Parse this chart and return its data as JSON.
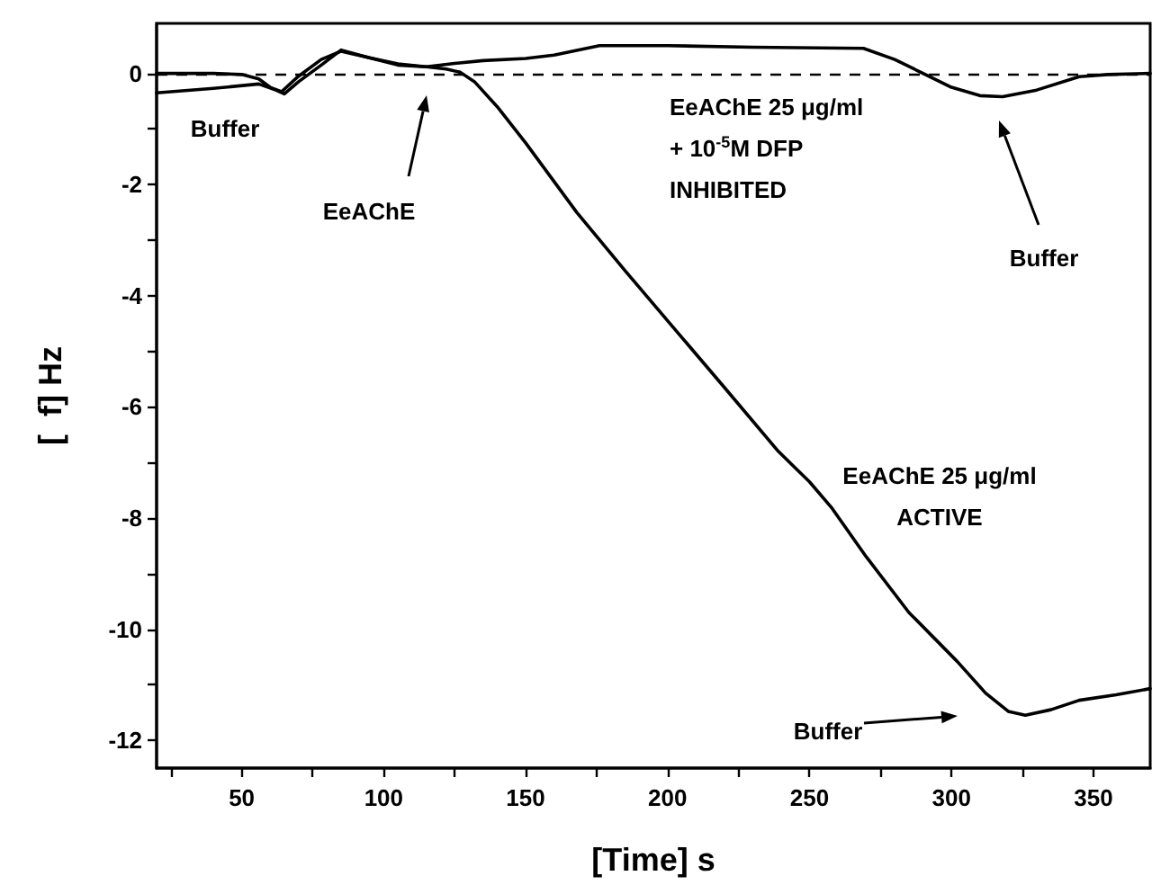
{
  "chart_data": {
    "type": "line",
    "xlabel": "[Time] s",
    "ylabel": "[  f] Hz",
    "xlim": [
      20,
      370
    ],
    "xticks": [
      {
        "value": 25,
        "label": null
      },
      50,
      {
        "value": 75,
        "label": null
      },
      100,
      {
        "value": 125,
        "label": null
      },
      150,
      {
        "value": 175,
        "label": null
      },
      200,
      {
        "value": 225,
        "label": null
      },
      250,
      {
        "value": 275,
        "label": null
      },
      300,
      {
        "value": 325,
        "label": null
      },
      350
    ],
    "ylim": [
      -12.5,
      0.9
    ],
    "yticks": [
      -12,
      {
        "value": -11,
        "label": null
      },
      -10,
      {
        "value": -9,
        "label": null
      },
      -8,
      {
        "value": -7,
        "label": null
      },
      -6,
      {
        "value": -5,
        "label": null
      },
      -4,
      {
        "value": -3,
        "label": null
      },
      -2,
      {
        "value": -1,
        "label": null
      },
      0
    ],
    "series": [
      {
        "color": "#000000",
        "x": [
          20,
          40,
          56,
          62,
          65,
          70,
          78,
          85,
          95,
          105,
          115,
          122,
          127,
          132,
          140,
          150,
          168,
          185,
          200,
          220,
          239,
          250,
          258,
          270,
          285,
          302,
          312,
          320,
          326,
          335,
          345,
          358,
          370
        ],
        "values": [
          -0.35,
          -0.27,
          -0.19,
          -0.3,
          -0.37,
          -0.15,
          0.15,
          0.42,
          0.28,
          0.17,
          0.12,
          0.08,
          0.02,
          -0.15,
          -0.6,
          -1.25,
          -2.5,
          -3.55,
          -4.45,
          -5.65,
          -6.8,
          -7.35,
          -7.83,
          -8.7,
          -9.7,
          -10.58,
          -11.15,
          -11.48,
          -11.55,
          -11.45,
          -11.28,
          -11.18,
          -11.07
        ]
      },
      {
        "color": "#000000",
        "x": [
          20,
          40,
          50,
          56,
          60,
          64,
          70,
          78,
          85,
          95,
          105,
          115,
          125,
          135,
          150,
          160,
          176,
          200,
          230,
          269,
          280,
          290,
          300,
          310,
          318,
          330,
          345,
          355,
          370
        ],
        "values": [
          0.0,
          0.0,
          -0.02,
          -0.1,
          -0.25,
          -0.33,
          -0.05,
          0.25,
          0.4,
          0.28,
          0.15,
          0.12,
          0.18,
          0.23,
          0.27,
          0.33,
          0.5,
          0.5,
          0.47,
          0.45,
          0.25,
          0.0,
          -0.25,
          -0.4,
          -0.42,
          -0.3,
          -0.06,
          -0.02,
          0.0
        ]
      }
    ],
    "ref_lines": [
      {
        "axis": "y",
        "value": 0,
        "color": "#000000",
        "line_style": "dashed"
      }
    ],
    "annotations": [
      "Buffer",
      "EeAChE",
      "EeAChE 25 μg/ml\n+ 10$^{-5}$M DFP\nINHIBITED",
      "Buffer",
      "EeAChE 25 μg/ml\nACTIVE",
      "Buffer"
    ],
    "grid": false,
    "marker": "none",
    "line_style": "solid"
  }
}
